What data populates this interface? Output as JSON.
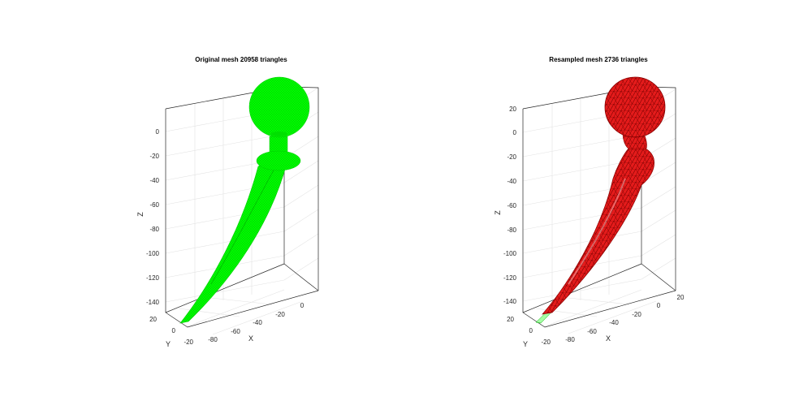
{
  "chart_data": [
    {
      "type": "3d-mesh",
      "title": "Original mesh 20958 triangles",
      "xlabel": "X",
      "ylabel": "Y",
      "zlabel": "Z",
      "z_ticks": [
        "0",
        "-20",
        "-40",
        "-60",
        "-80",
        "-100",
        "-120",
        "-140"
      ],
      "x_ticks": [
        "-80",
        "-60",
        "-40",
        "-20",
        "0"
      ],
      "y_ticks": [
        "20",
        "0",
        "-20"
      ],
      "zlim": [
        -145,
        15
      ],
      "mesh_color": "#00ff00",
      "edge_color": "#00cc00",
      "triangles": 20958
    },
    {
      "type": "3d-mesh",
      "title": "Resampled mesh 2736 triangles",
      "xlabel": "X",
      "ylabel": "Y",
      "zlabel": "Z",
      "z_ticks": [
        "20",
        "0",
        "-20",
        "-40",
        "-60",
        "-80",
        "-100",
        "-120",
        "-140"
      ],
      "x_ticks": [
        "-80",
        "-60",
        "-40",
        "-20",
        "0",
        "20"
      ],
      "y_ticks": [
        "20",
        "0",
        "-20"
      ],
      "zlim": [
        -145,
        25
      ],
      "mesh_color": "#ff0000",
      "edge_color": "#8b0000",
      "overlay_color": "#00ff00",
      "triangles": 2736
    }
  ]
}
